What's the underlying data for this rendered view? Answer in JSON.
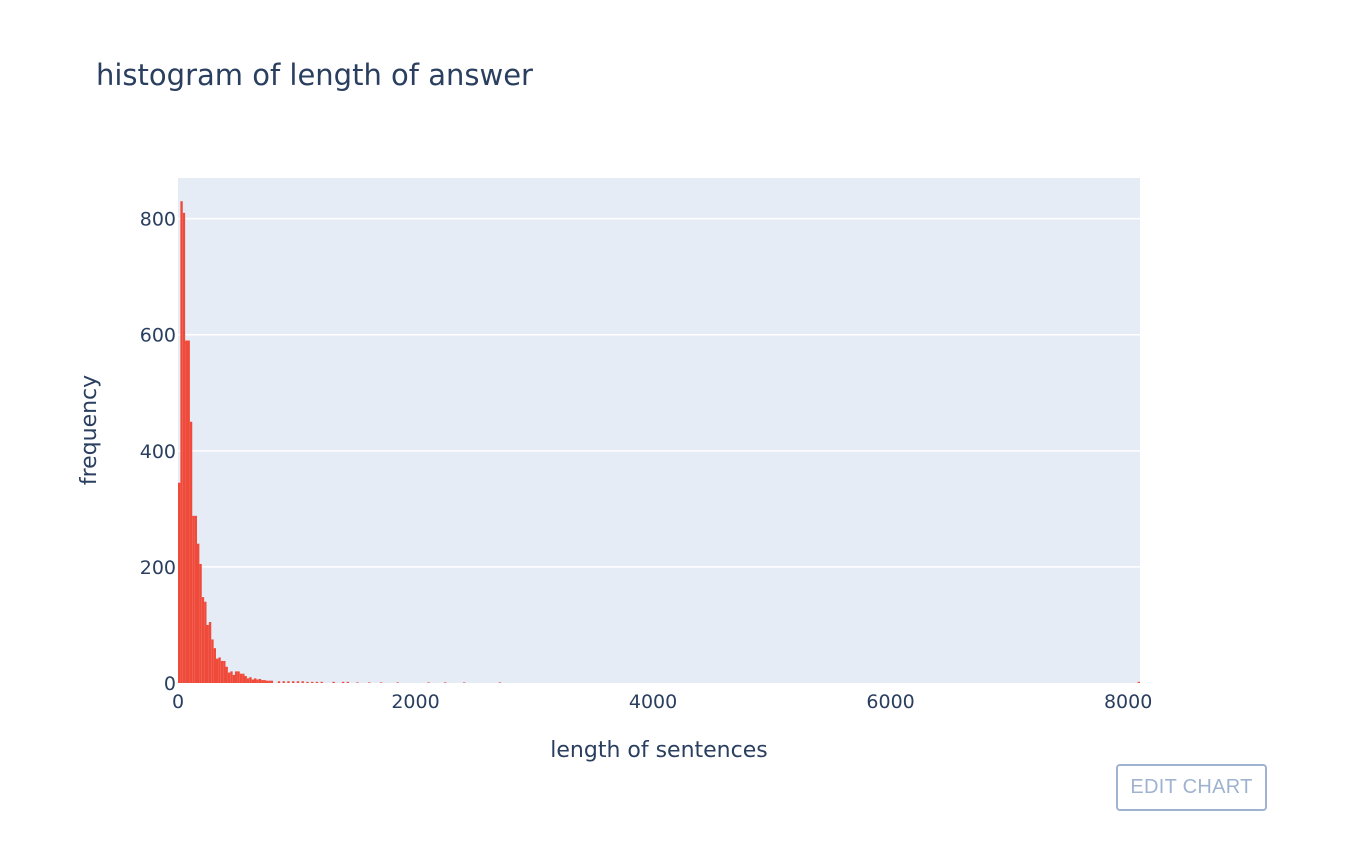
{
  "chart_data": {
    "type": "bar",
    "title": "histogram of length of answer",
    "xlabel": "length of sentences",
    "ylabel": "frequency",
    "xlim": [
      0,
      8100
    ],
    "ylim": [
      0,
      870
    ],
    "xticks": [
      0,
      2000,
      4000,
      6000,
      8000
    ],
    "xtick_labels": [
      "0",
      "2000",
      "4000",
      "6000",
      "8000"
    ],
    "yticks": [
      0,
      200,
      400,
      600,
      800
    ],
    "ytick_labels": [
      "0",
      "200",
      "400",
      "600",
      "800"
    ],
    "bin_width": 20,
    "bin_starts": [
      0,
      20,
      40,
      60,
      80,
      100,
      120,
      140,
      160,
      180,
      200,
      220,
      240,
      260,
      280,
      300,
      320,
      340,
      360,
      380,
      400,
      420,
      440,
      460,
      480,
      500,
      520,
      540,
      560,
      580,
      600,
      620,
      640,
      660,
      680,
      700,
      720,
      740,
      760,
      780,
      840,
      880,
      920,
      960,
      1000,
      1040,
      1080,
      1120,
      1160,
      1200,
      1300,
      1380,
      1420,
      1500,
      1600,
      1700,
      1840,
      2100,
      2240,
      2400,
      2700,
      8080
    ],
    "values": [
      345,
      830,
      810,
      590,
      590,
      450,
      288,
      288,
      240,
      205,
      148,
      140,
      100,
      105,
      75,
      60,
      42,
      44,
      38,
      38,
      28,
      18,
      20,
      14,
      20,
      20,
      16,
      16,
      12,
      8,
      10,
      6,
      8,
      6,
      7,
      5,
      5,
      4,
      4,
      4,
      3,
      3,
      3,
      3,
      3,
      3,
      2,
      2,
      2,
      2,
      2,
      2,
      2,
      1,
      1,
      1,
      1,
      1,
      1,
      1,
      1,
      2
    ],
    "bar_color": "#ef4a3a",
    "plot_bg": "#e5ecf6",
    "grid": true,
    "legend": false
  },
  "toolbar": {
    "edit_label": "EDIT CHART"
  }
}
